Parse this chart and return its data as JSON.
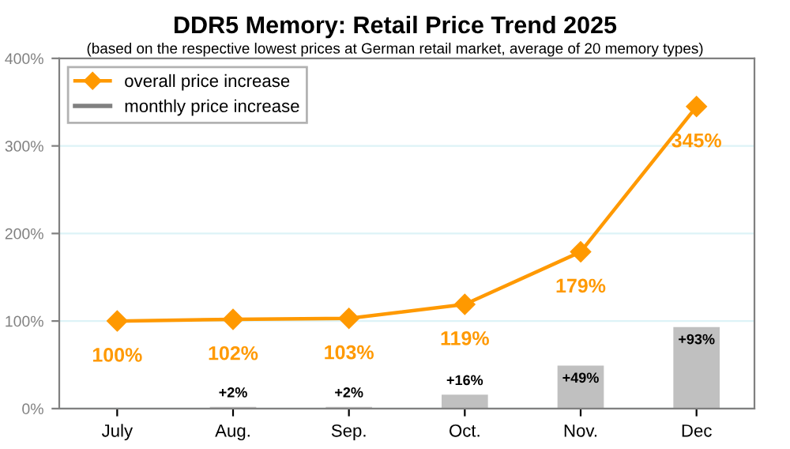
{
  "chart_data": {
    "type": "line",
    "title": "DDR5 Memory: Retail Price Trend 2025",
    "subtitle": "(based on the respective lowest prices at German retail market, average of 20 memory types)",
    "categories": [
      "July",
      "Aug.",
      "Sep.",
      "Oct.",
      "Nov.",
      "Dec"
    ],
    "series": [
      {
        "name": "overall price increase",
        "color": "#ff9900",
        "values": [
          100,
          102,
          103,
          119,
          179,
          345
        ],
        "value_labels": [
          "100%",
          "102%",
          "103%",
          "119%",
          "179%",
          "345%"
        ],
        "marker": "diamond"
      },
      {
        "name": "monthly price increase",
        "type": "bar",
        "color": "#c0c0c0",
        "values": [
          null,
          2,
          2,
          16,
          49,
          93
        ],
        "value_labels": [
          null,
          "+2%",
          "+2%",
          "+16%",
          "+49%",
          "+93%"
        ]
      }
    ],
    "ylim": [
      0,
      400
    ],
    "yticks": [
      {
        "value": 0,
        "label": "0%"
      },
      {
        "value": 100,
        "label": "100%"
      },
      {
        "value": 200,
        "label": "200%"
      },
      {
        "value": 300,
        "label": "300%"
      },
      {
        "value": 400,
        "label": "400%"
      }
    ],
    "grid": "y",
    "legend": "top left"
  }
}
